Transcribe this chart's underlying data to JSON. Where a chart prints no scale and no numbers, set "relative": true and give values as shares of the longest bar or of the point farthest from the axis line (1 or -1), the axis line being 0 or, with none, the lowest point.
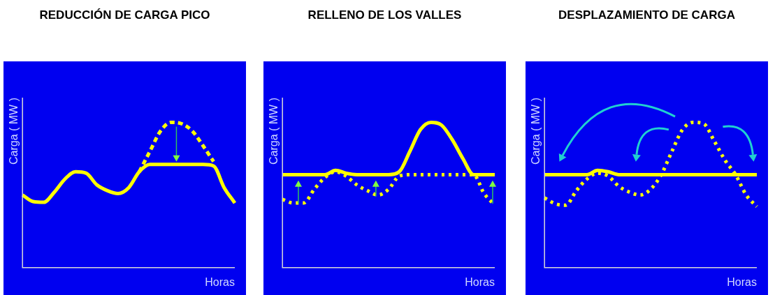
{
  "chart_data": [
    {
      "type": "line",
      "title": "REDUCCIÓN DE CARGA PICO",
      "xlabel": "Horas",
      "ylabel": "Carga ( MW )",
      "relative": true,
      "grid": false,
      "legend": false,
      "categories": [
        null,
        null,
        null,
        null,
        null,
        null,
        null,
        null,
        null,
        null,
        null,
        null,
        null,
        null,
        null,
        null,
        null,
        null,
        null,
        null,
        null
      ],
      "series": [
        {
          "color": "#ffff00",
          "line_style": "dashed",
          "values": [
            null,
            null,
            null,
            null,
            null,
            null,
            null,
            null,
            null,
            null,
            null,
            0.66,
            0.8,
            0.94,
            1,
            0.99,
            0.94,
            0.84,
            0.73,
            null,
            null
          ]
        },
        {
          "color": "#ffff00",
          "line_style": "solid",
          "values": [
            0.5,
            0.455,
            0.45,
            0.52,
            0.61,
            0.66,
            0.65,
            0.57,
            0.53,
            0.51,
            0.55,
            0.66,
            0.71,
            0.71,
            0.71,
            0.71,
            0.71,
            0.71,
            0.7,
            0.55,
            0.445
          ]
        }
      ]
    },
    {
      "type": "line",
      "title": "RELLENO DE LOS VALLES",
      "xlabel": "Horas",
      "ylabel": "Carga ( MW )",
      "relative": true,
      "grid": false,
      "legend": false,
      "categories": [
        null,
        null,
        null,
        null,
        null,
        null,
        null,
        null,
        null,
        null,
        null,
        null,
        null,
        null,
        null,
        null,
        null,
        null,
        null,
        null,
        null
      ],
      "series": [
        {
          "color": "#ffff00",
          "line_style": "dotted",
          "values": [
            0.47,
            0.445,
            0.445,
            0.54,
            0.62,
            0.66,
            0.63,
            0.57,
            0.53,
            0.5,
            0.54,
            0.63,
            0.64,
            0.64,
            0.64,
            0.64,
            0.64,
            0.64,
            0.64,
            0.51,
            0.43
          ]
        },
        {
          "color": "#ffff00",
          "line_style": "solid",
          "values": [
            0.64,
            0.64,
            0.64,
            0.64,
            0.64,
            0.67,
            0.65,
            0.64,
            0.64,
            0.64,
            0.64,
            0.66,
            0.8,
            0.95,
            1,
            0.98,
            0.88,
            0.75,
            0.64,
            0.64,
            0.64
          ]
        }
      ]
    },
    {
      "type": "line",
      "title": "DESPLAZAMIENTO DE CARGA",
      "xlabel": "Horas",
      "ylabel": "Carga ( MW )",
      "relative": true,
      "grid": false,
      "legend": false,
      "categories": [
        null,
        null,
        null,
        null,
        null,
        null,
        null,
        null,
        null,
        null,
        null,
        null,
        null,
        null,
        null,
        null,
        null,
        null,
        null,
        null,
        null
      ],
      "series": [
        {
          "color": "#ffff00",
          "line_style": "solid",
          "values": [
            0.64,
            0.64,
            0.64,
            0.64,
            0.64,
            0.67,
            0.66,
            0.64,
            0.64,
            0.64,
            0.64,
            0.64,
            0.64,
            0.64,
            0.64,
            0.64,
            0.64,
            0.64,
            0.64,
            0.64,
            0.64
          ]
        },
        {
          "color": "#ffff00",
          "line_style": "dotted",
          "values": [
            0.48,
            0.44,
            0.43,
            0.53,
            0.61,
            0.65,
            0.63,
            0.56,
            0.52,
            0.5,
            0.54,
            0.64,
            0.8,
            0.95,
            1,
            0.99,
            0.87,
            0.74,
            0.64,
            0.5,
            0.42
          ]
        }
      ]
    }
  ]
}
